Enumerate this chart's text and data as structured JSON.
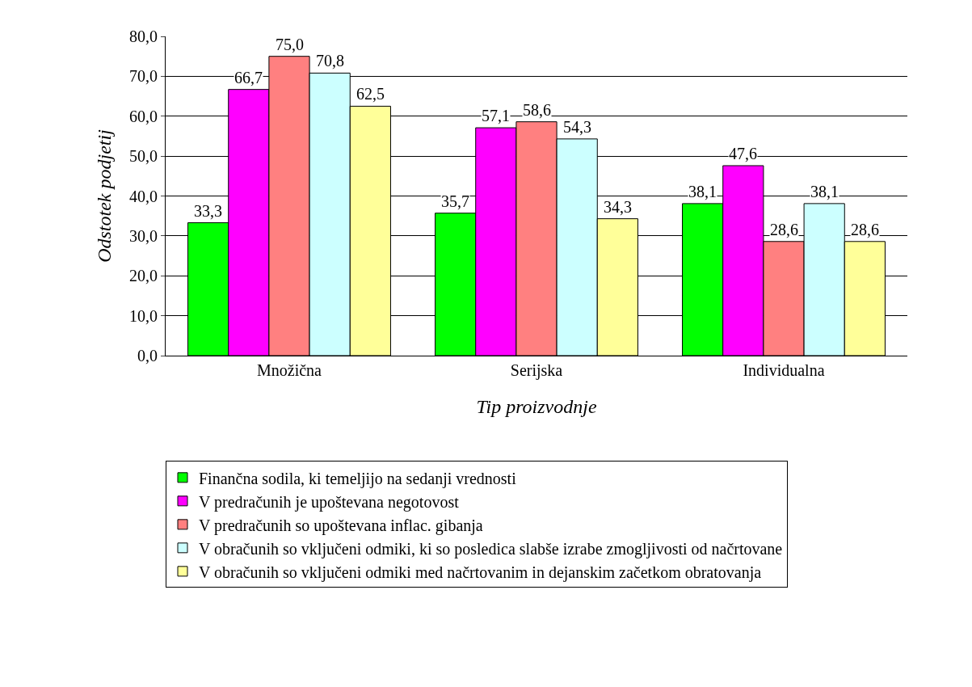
{
  "chart_data": {
    "type": "bar",
    "xlabel": "Tip proizvodnje",
    "ylabel": "Odstotek podjetij",
    "categories": [
      "Množična",
      "Serijska",
      "Individualna"
    ],
    "series": [
      {
        "name": "Finančna sodila, ki temeljijo na sedanji vrednosti",
        "color": "#00ff00",
        "values": [
          33.3,
          35.7,
          38.1
        ],
        "value_labels": [
          "33,3",
          "35,7",
          "38,1"
        ]
      },
      {
        "name": "V predračunih je upoštevana negotovost",
        "color": "#ff00ff",
        "values": [
          66.7,
          57.1,
          47.6
        ],
        "value_labels": [
          "66,7",
          "57,1",
          "47,6"
        ]
      },
      {
        "name": "V predračunih so upoštevana inflac. gibanja",
        "color": "#ff8080",
        "values": [
          75.0,
          58.6,
          28.6
        ],
        "value_labels": [
          "75,0",
          "58,6",
          "28,6"
        ]
      },
      {
        "name": "V obračunih so vključeni odmiki, ki so posledica slabše izrabe zmogljivosti od načrtovane",
        "color": "#ccffff",
        "values": [
          70.8,
          54.3,
          38.1
        ],
        "value_labels": [
          "70,8",
          "54,3",
          "38,1"
        ]
      },
      {
        "name": "V obračunih so vključeni odmiki med načrtovanim in dejanskim začetkom obratovanja",
        "color": "#ffff99",
        "values": [
          62.5,
          34.3,
          28.6
        ],
        "value_labels": [
          "62,5",
          "34,3",
          "28,6"
        ]
      }
    ],
    "ylim": [
      0,
      80
    ],
    "yticks": [
      {
        "value": 0,
        "label": "0,0"
      },
      {
        "value": 10,
        "label": "10,0"
      },
      {
        "value": 20,
        "label": "20,0"
      },
      {
        "value": 30,
        "label": "30,0"
      },
      {
        "value": 40,
        "label": "40,0"
      },
      {
        "value": 50,
        "label": "50,0"
      },
      {
        "value": 60,
        "label": "60,0"
      },
      {
        "value": 70,
        "label": "70,0"
      },
      {
        "value": 80,
        "label": "80,0"
      }
    ],
    "grid": "y",
    "legend": "bottom"
  }
}
